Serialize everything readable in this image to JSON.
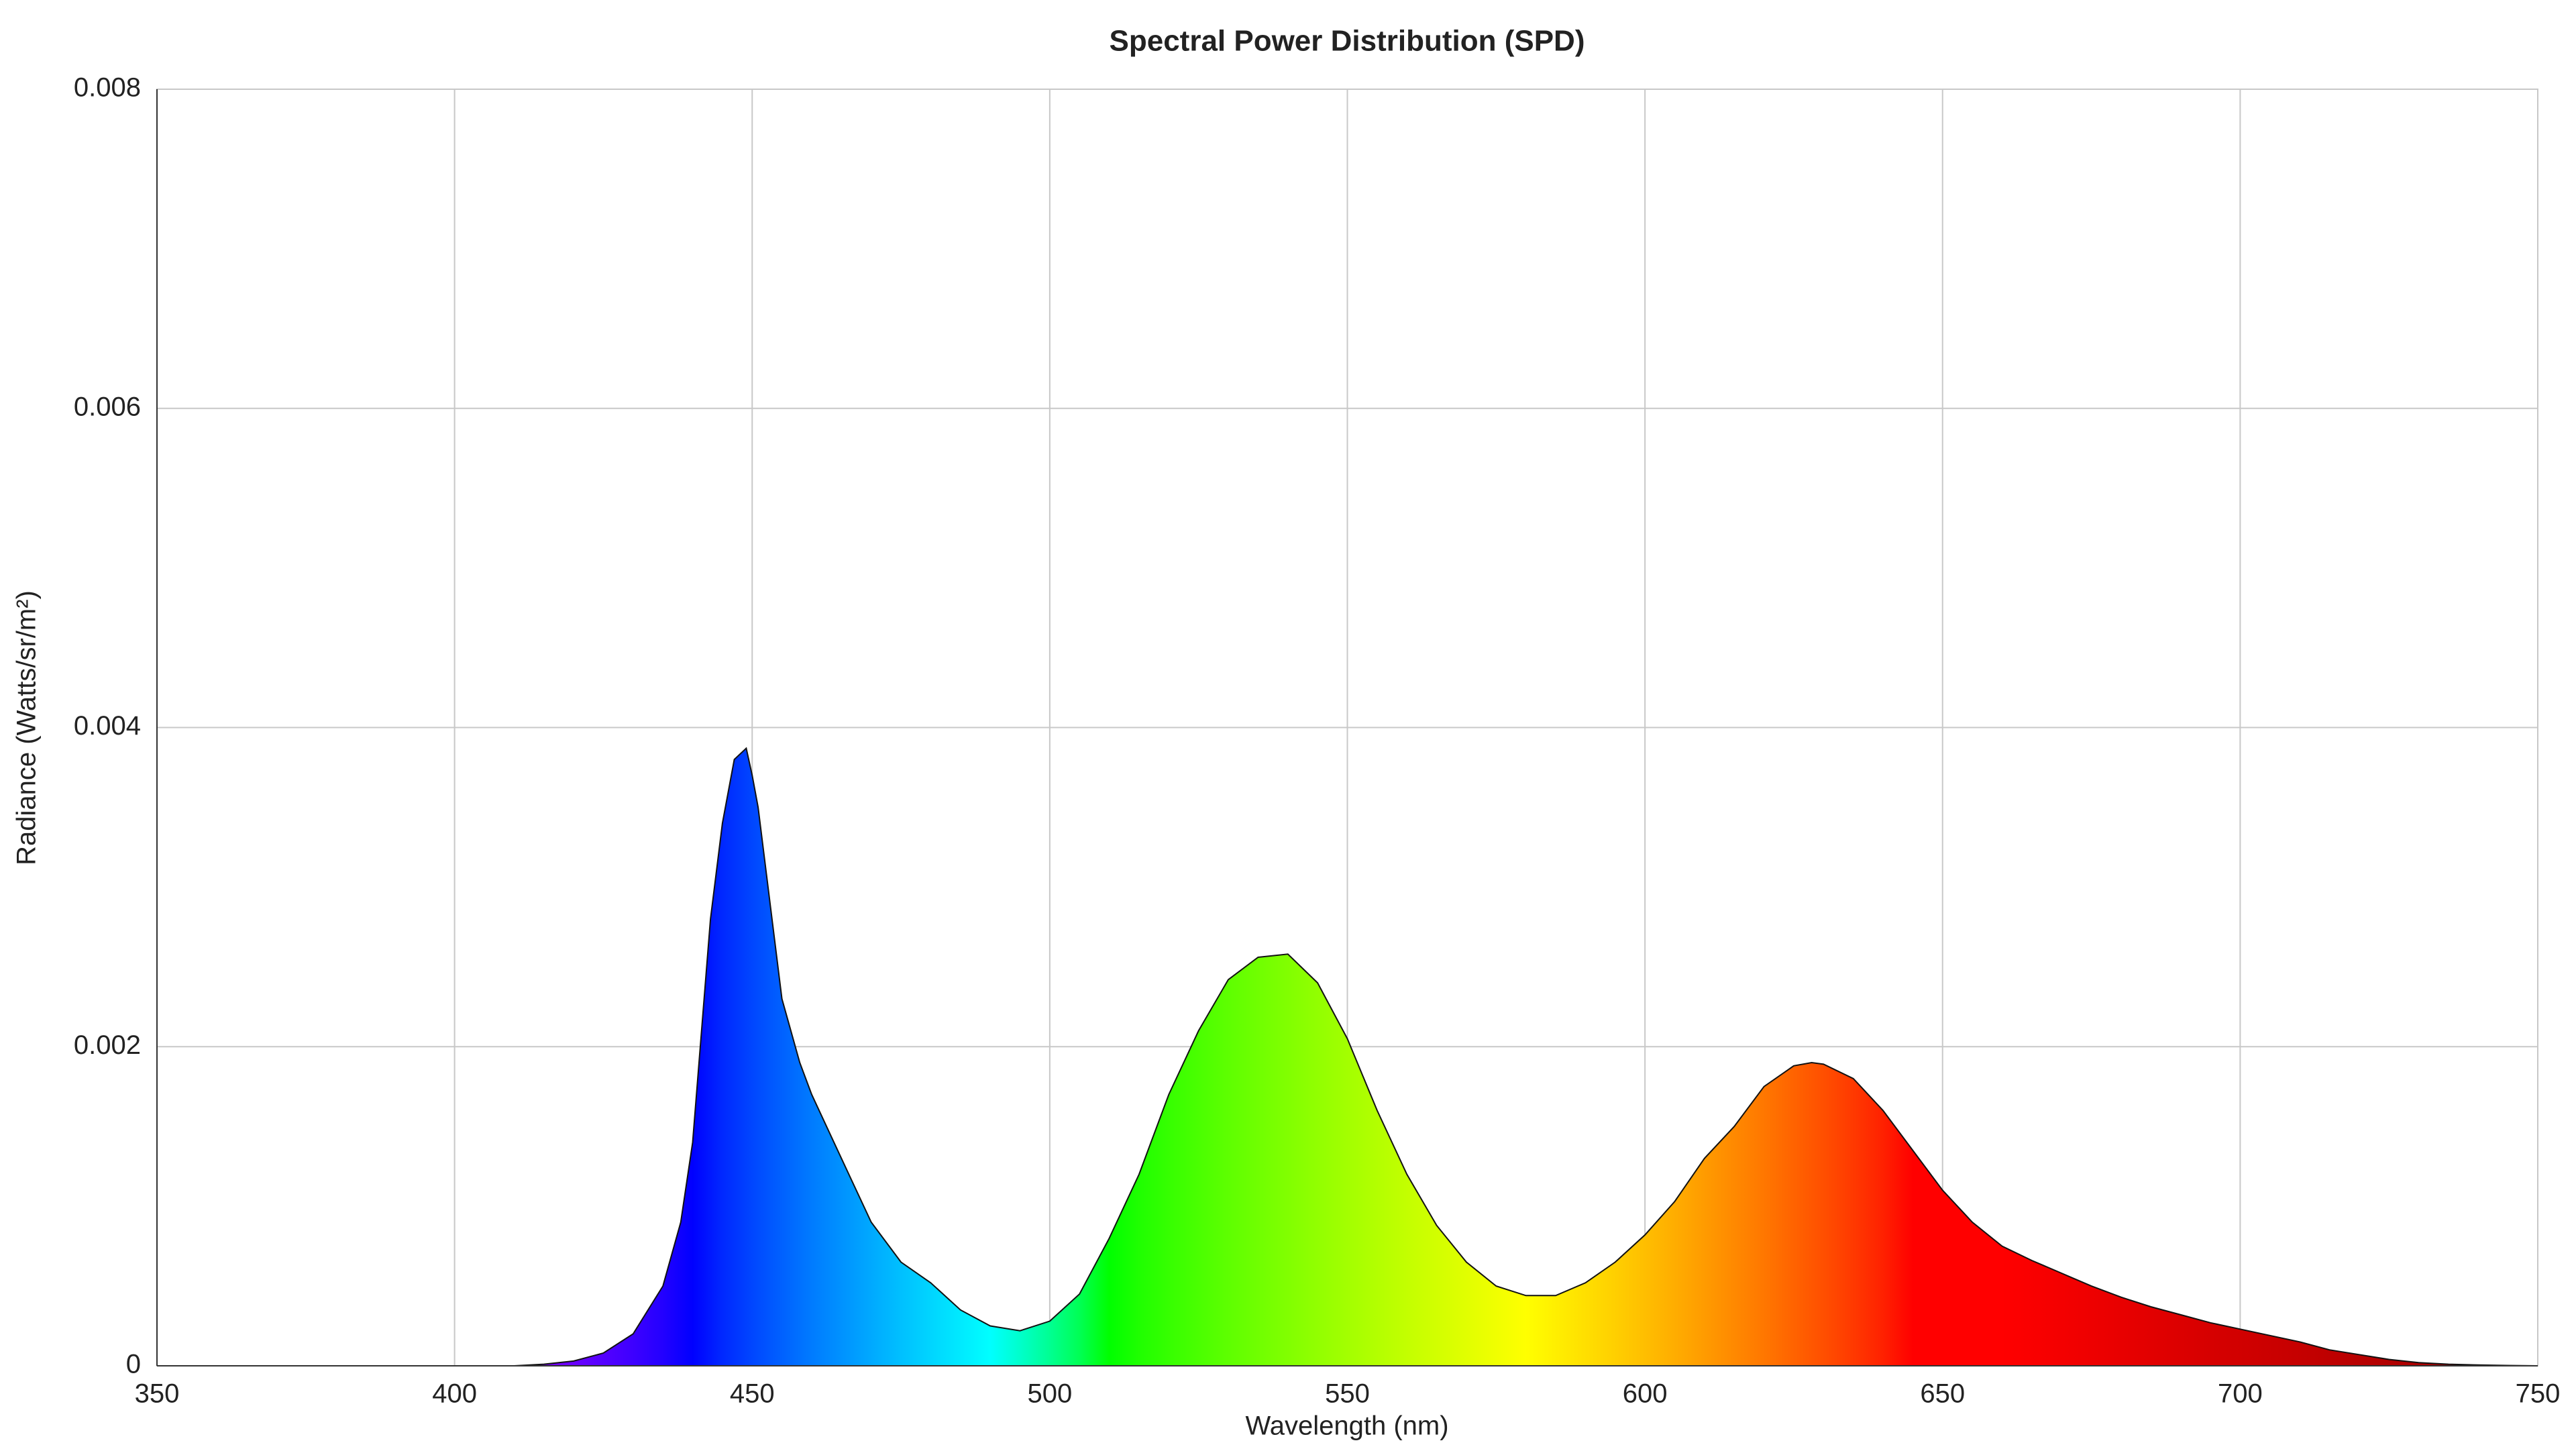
{
  "chart_data": {
    "type": "area",
    "title": "Spectral Power Distribution (SPD)",
    "x_label": "Wavelength (nm)",
    "y_label": "Radiance (Watts/sr/m²)",
    "x": [
      350,
      355,
      360,
      365,
      370,
      375,
      380,
      385,
      390,
      395,
      400,
      405,
      410,
      415,
      420,
      425,
      430,
      435,
      438,
      440,
      443,
      445,
      447,
      449,
      450,
      451,
      455,
      458,
      460,
      465,
      470,
      475,
      480,
      485,
      490,
      495,
      500,
      505,
      510,
      515,
      520,
      525,
      530,
      535,
      540,
      545,
      550,
      555,
      560,
      565,
      570,
      575,
      580,
      585,
      590,
      595,
      600,
      605,
      610,
      615,
      620,
      625,
      628,
      630,
      635,
      640,
      645,
      650,
      655,
      660,
      665,
      670,
      675,
      680,
      685,
      690,
      695,
      700,
      705,
      710,
      715,
      720,
      725,
      730,
      735,
      740,
      745,
      750
    ],
    "values": [
      0,
      0,
      0,
      0,
      0,
      0,
      0,
      0,
      0,
      0,
      0,
      0,
      0,
      1e-05,
      3e-05,
      8e-05,
      0.0002,
      0.0005,
      0.0009,
      0.0014,
      0.0028,
      0.0034,
      0.0038,
      0.00387,
      0.0037,
      0.0035,
      0.0023,
      0.0019,
      0.0017,
      0.0013,
      0.0009,
      0.00065,
      0.00052,
      0.00035,
      0.00025,
      0.00022,
      0.00028,
      0.00045,
      0.0008,
      0.0012,
      0.0017,
      0.0021,
      0.00242,
      0.00256,
      0.00258,
      0.0024,
      0.00205,
      0.0016,
      0.0012,
      0.00088,
      0.00065,
      0.0005,
      0.00044,
      0.00044,
      0.00052,
      0.00065,
      0.00082,
      0.00103,
      0.0013,
      0.0015,
      0.00175,
      0.00188,
      0.0019,
      0.00189,
      0.0018,
      0.0016,
      0.00135,
      0.0011,
      0.0009,
      0.00075,
      0.00066,
      0.00058,
      0.0005,
      0.00043,
      0.00037,
      0.00032,
      0.00027,
      0.00023,
      0.00019,
      0.00015,
      0.0001,
      7e-05,
      4e-05,
      2e-05,
      1e-05,
      5e-06,
      2e-06,
      0
    ],
    "xlim": [
      350,
      750
    ],
    "xticks": [
      350,
      400,
      450,
      500,
      550,
      600,
      650,
      700,
      750
    ],
    "ylim": [
      0,
      0.008
    ],
    "yticks": [
      0,
      0.002,
      0.004,
      0.006,
      0.008
    ],
    "grid": true
  }
}
